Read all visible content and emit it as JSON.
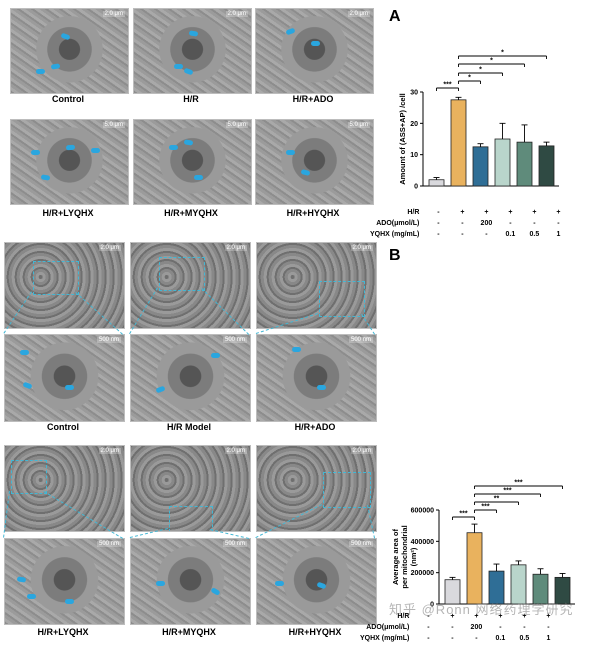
{
  "figure": {
    "panels": [
      {
        "letter": "A",
        "tem_captions": [
          "Control",
          "H/R",
          "H/R+ADO",
          "H/R+LYQHX",
          "H/R+MYQHX",
          "H/R+HYQHX"
        ],
        "scale_labels": [
          "2.0 μm",
          "2.0 μm",
          "2.0 μm",
          "5.0 μm",
          "5.0 μm",
          "5.0 μm"
        ],
        "conditions": {
          "rows": [
            {
              "label": "H/R",
              "values": [
                "-",
                "+",
                "+",
                "+",
                "+",
                "+"
              ]
            },
            {
              "label": "ADO(μmol/L)",
              "values": [
                "-",
                "-",
                "200",
                "-",
                "-",
                "-"
              ]
            },
            {
              "label": "YQHX (mg/mL)",
              "values": [
                "-",
                "-",
                "-",
                "0.1",
                "0.5",
                "1"
              ]
            }
          ]
        }
      },
      {
        "letter": "B",
        "tem_captions": [
          "Control",
          "H/R Model",
          "H/R+ADO",
          "H/R+LYQHX",
          "H/R+MYQHX",
          "H/R+HYQHX"
        ],
        "scale_labels_low": [
          "2.0 μm",
          "2.0 μm",
          "2.0 μm",
          "2.0 μm",
          "2.0 μm",
          "2.0 μm"
        ],
        "scale_labels_high": [
          "500 nm",
          "500 nm",
          "500 nm",
          "500 nm",
          "500 nm",
          "500 nm"
        ],
        "conditions": {
          "rows": [
            {
              "label": "H/R",
              "values": [
                "-",
                "+",
                "+",
                "+",
                "+",
                "+"
              ]
            },
            {
              "label": "ADO(μmol/L)",
              "values": [
                "-",
                "-",
                "200",
                "-",
                "-",
                "-"
              ]
            },
            {
              "label": "YQHX (mg/mL)",
              "values": [
                "-",
                "-",
                "-",
                "0.1",
                "0.5",
                "1"
              ]
            }
          ]
        }
      }
    ],
    "watermark": "知乎 @Ronn 网络药理学研究"
  },
  "chart_data": [
    {
      "type": "bar",
      "categories": [
        "Control",
        "H/R",
        "H/R+ADO",
        "H/R+LYQHX",
        "H/R+MYQHX",
        "H/R+HYQHX"
      ],
      "values": [
        2,
        27.5,
        12.5,
        15,
        14,
        12.8
      ],
      "errors": [
        0.7,
        0.8,
        1.0,
        5.0,
        5.5,
        1.2
      ],
      "colors": [
        "#d9d9dd",
        "#e9b25e",
        "#2f6e96",
        "#b9d5cb",
        "#5f8b7b",
        "#2f4a43"
      ],
      "ylabel": "Amount of (ASS+AP) /cell",
      "ylim": [
        0,
        30
      ],
      "yticks": [
        "0",
        "10",
        "20",
        "30"
      ],
      "significance": [
        {
          "from": 0,
          "to": 1,
          "label": "***"
        },
        {
          "from": 1,
          "to": 2,
          "label": "*"
        },
        {
          "from": 1,
          "to": 3,
          "label": "*"
        },
        {
          "from": 1,
          "to": 4,
          "label": "*"
        },
        {
          "from": 1,
          "to": 5,
          "label": "*"
        }
      ]
    },
    {
      "type": "bar",
      "categories": [
        "Control",
        "H/R",
        "H/R+ADO",
        "H/R+LYQHX",
        "H/R+MYQHX",
        "H/R+HYQHX"
      ],
      "values": [
        155000,
        455000,
        210000,
        250000,
        190000,
        170000
      ],
      "errors": [
        15000,
        55000,
        45000,
        25000,
        35000,
        25000
      ],
      "colors": [
        "#d9d9dd",
        "#e9b25e",
        "#2f6e96",
        "#b9d5cb",
        "#5f8b7b",
        "#2f4a43"
      ],
      "ylabel": "Average area of per mitochondrial (nm²)",
      "ylim": [
        0,
        600000
      ],
      "yticks": [
        "0",
        "200000",
        "400000",
        "600000"
      ],
      "significance": [
        {
          "from": 0,
          "to": 1,
          "label": "***"
        },
        {
          "from": 1,
          "to": 2,
          "label": "***"
        },
        {
          "from": 1,
          "to": 3,
          "label": "**"
        },
        {
          "from": 1,
          "to": 4,
          "label": "***"
        },
        {
          "from": 1,
          "to": 5,
          "label": "***"
        }
      ]
    }
  ]
}
